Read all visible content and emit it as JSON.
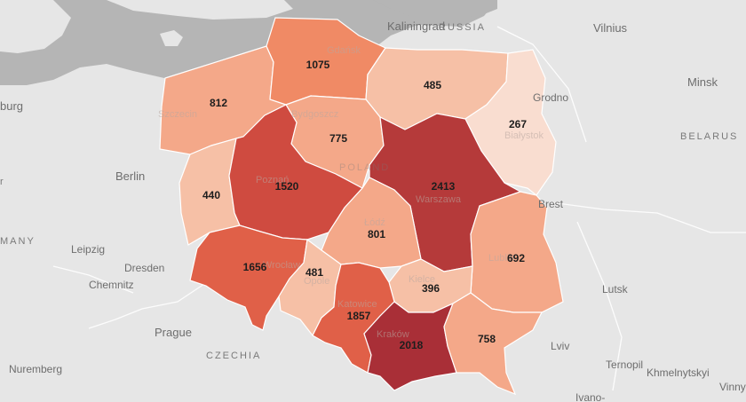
{
  "map": {
    "colors": {
      "land": "#e6e6e6",
      "sea": "#b5b5b5",
      "scale": [
        "#f9ddd0",
        "#f6c0a6",
        "#f4a889",
        "#f08a65",
        "#e06048",
        "#cf4b40",
        "#b53a3a",
        "#a92f37"
      ]
    },
    "regions": [
      {
        "id": "zachodniopomorskie",
        "value": 812,
        "label": "812",
        "color_index": 2
      },
      {
        "id": "pomorskie",
        "value": 1075,
        "label": "1075",
        "color_index": 3
      },
      {
        "id": "warminsko-mazurskie",
        "value": 485,
        "label": "485",
        "color_index": 1
      },
      {
        "id": "podlaskie",
        "value": 267,
        "label": "267",
        "color_index": 0
      },
      {
        "id": "kujawsko-pomorskie",
        "value": 775,
        "label": "775",
        "color_index": 2
      },
      {
        "id": "wielkopolskie",
        "value": 1520,
        "label": "1520",
        "color_index": 5
      },
      {
        "id": "lubuskie",
        "value": 440,
        "label": "440",
        "color_index": 1
      },
      {
        "id": "mazowieckie",
        "value": 2413,
        "label": "2413",
        "color_index": 6
      },
      {
        "id": "lodzkie",
        "value": 801,
        "label": "801",
        "color_index": 2
      },
      {
        "id": "lubelskie",
        "value": 692,
        "label": "692",
        "color_index": 2
      },
      {
        "id": "dolnoslaskie",
        "value": 1656,
        "label": "1656",
        "color_index": 4
      },
      {
        "id": "opolskie",
        "value": 481,
        "label": "481",
        "color_index": 1
      },
      {
        "id": "slaskie",
        "value": 1857,
        "label": "1857",
        "color_index": 4
      },
      {
        "id": "swietokrzyskie",
        "value": 396,
        "label": "396",
        "color_index": 1
      },
      {
        "id": "malopolskie",
        "value": 2018,
        "label": "2018",
        "color_index": 7
      },
      {
        "id": "podkarpackie",
        "value": 758,
        "label": "758",
        "color_index": 2
      }
    ],
    "cities": {
      "kaliningrad": "Kaliningrad",
      "vilnius": "Vilnius",
      "minsk": "Minsk",
      "grodno": "Grodno",
      "brest": "Brest",
      "berlin": "Berlin",
      "leipzig": "Leipzig",
      "dresden": "Dresden",
      "chemnitz": "Chemnitz",
      "prague": "Prague",
      "nuremberg": "Nuremberg",
      "lutsk": "Lutsk",
      "lviv": "Lviv",
      "ternopil": "Ternopil",
      "khmelnytskyi": "Khmelnytskyi",
      "vinny": "Vinny",
      "ivano": "Ivano-",
      "burg": "burg"
    },
    "ghost_labels": {
      "gdansk": "Gdańsk",
      "szczecin": "Szczecin",
      "bydgoszcz": "Bydgoszcz",
      "poznan": "Poznań",
      "warszawa": "Warszawa",
      "bialystok": "Białystok",
      "lodz": "Łódź",
      "lublin": "Lublin",
      "wroclaw": "Wrocław",
      "kielce": "Kielce",
      "krakow": "Kraków",
      "opole": "Opole",
      "katowice": "Katowice"
    },
    "countries": {
      "russia": "RUSSIA",
      "belarus": "BELARUS",
      "poland": "POLAND",
      "czechia": "CZECHIA",
      "germany": "MANY",
      "germany_left": "r"
    }
  }
}
